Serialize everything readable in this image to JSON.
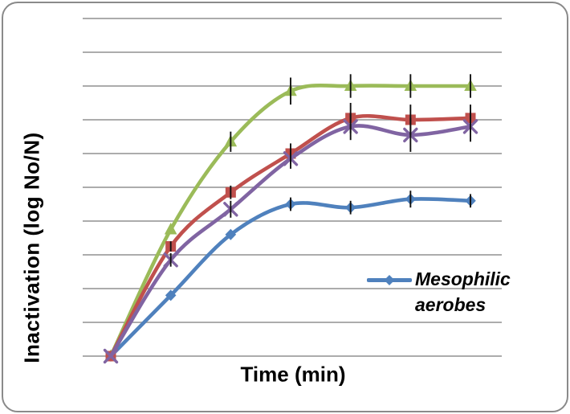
{
  "chart": {
    "y_axis_label": "Inactivation (log No/N)",
    "x_axis_label": "Time (min)",
    "legend": {
      "entries": [
        {
          "series": "mesophilic-aerobes",
          "label_line1": "Mesophilic",
          "label_line2": "aerobes",
          "color": "#4F81BD",
          "marker": "diamond"
        }
      ]
    },
    "colors": {
      "frame_border": "#8A8A8A",
      "gridline": "#A0A0A0",
      "error_bar": "#111111",
      "background": "#FFFFFF"
    }
  },
  "chart_data": {
    "type": "line",
    "title": "",
    "xlabel": "Time (min)",
    "ylabel": "Inactivation (log No/N)",
    "x_tick_labels": [],
    "y_tick_labels": [],
    "x_index": [
      0,
      1,
      2,
      3,
      4,
      5,
      6
    ],
    "ylim": [
      0,
      10
    ],
    "gridline_count": 11,
    "smoothed_lines": true,
    "legend_position": "inside-right",
    "legend_visible_for": [
      "mesophilic-aerobes"
    ],
    "series": [
      {
        "name": "mesophilic-aerobes",
        "label": "Mesophilic aerobes",
        "color": "#4F81BD",
        "marker": "diamond",
        "values": [
          0,
          1.8,
          3.6,
          4.5,
          4.4,
          4.65,
          4.6
        ],
        "error_bars": [
          0,
          0,
          0,
          0.2,
          0.2,
          0.25,
          0.2
        ]
      },
      {
        "name": "unlabeled-green-triangle",
        "label": "",
        "color": "#9BBB59",
        "marker": "triangle",
        "values": [
          0,
          3.75,
          6.35,
          7.85,
          8,
          8,
          8
        ],
        "error_bars": [
          0,
          0,
          0.3,
          0.4,
          0.35,
          0.35,
          0.35
        ]
      },
      {
        "name": "unlabeled-red-square",
        "label": "",
        "color": "#C0504D",
        "marker": "square",
        "values": [
          0,
          3.25,
          4.85,
          6,
          7.05,
          7,
          7.05
        ],
        "error_bars": [
          0,
          0.15,
          0.2,
          0.3,
          0.45,
          0.45,
          0.4
        ]
      },
      {
        "name": "unlabeled-purple-x",
        "label": "",
        "color": "#8064A2",
        "marker": "x",
        "values": [
          0,
          2.85,
          4.35,
          5.85,
          6.8,
          6.55,
          6.8
        ],
        "error_bars": [
          0,
          0.2,
          0.25,
          0.3,
          0.4,
          0.5,
          0.45
        ]
      }
    ]
  }
}
